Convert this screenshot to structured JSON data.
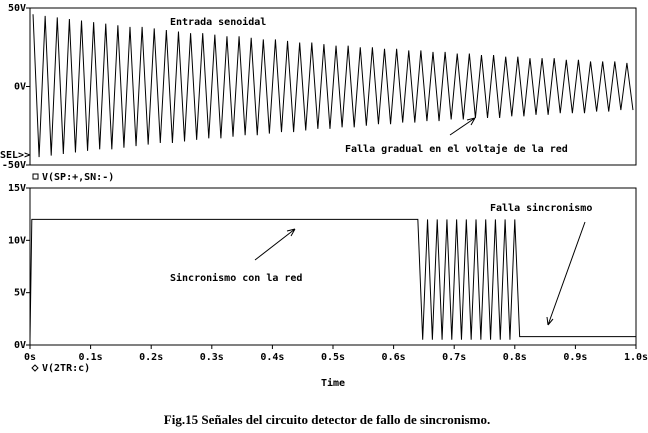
{
  "chart_data": [
    {
      "type": "line",
      "selector": "SEL>>",
      "annotations": [
        "Entrada senoidal",
        "Falla gradual en el voltaje de la red"
      ],
      "xlim": [
        0,
        1
      ],
      "ylim": [
        -50,
        50
      ],
      "yticks": [
        {
          "value": -50,
          "label": "-50V"
        },
        {
          "value": 0,
          "label": "0V"
        },
        {
          "value": 50,
          "label": "50V"
        }
      ],
      "x": [
        0.005,
        0.015,
        0.025,
        0.035,
        0.045,
        0.055,
        0.065,
        0.075,
        0.085,
        0.095,
        0.105,
        0.115,
        0.125,
        0.135,
        0.145,
        0.155,
        0.165,
        0.175,
        0.185,
        0.195,
        0.205,
        0.215,
        0.225,
        0.235,
        0.245,
        0.255,
        0.265,
        0.275,
        0.285,
        0.295,
        0.305,
        0.315,
        0.325,
        0.335,
        0.345,
        0.355,
        0.365,
        0.375,
        0.385,
        0.395,
        0.405,
        0.415,
        0.425,
        0.435,
        0.445,
        0.455,
        0.465,
        0.475,
        0.485,
        0.495,
        0.505,
        0.515,
        0.525,
        0.535,
        0.545,
        0.555,
        0.565,
        0.575,
        0.585,
        0.595,
        0.605,
        0.615,
        0.625,
        0.635,
        0.645,
        0.655,
        0.665,
        0.675,
        0.685,
        0.695,
        0.705,
        0.715,
        0.725,
        0.735,
        0.745,
        0.755,
        0.765,
        0.775,
        0.785,
        0.795,
        0.805,
        0.815,
        0.825,
        0.835,
        0.845,
        0.855,
        0.865,
        0.875,
        0.885,
        0.895,
        0.905,
        0.915,
        0.925,
        0.935,
        0.945,
        0.955,
        0.965,
        0.975,
        0.985,
        0.995
      ],
      "series": [
        {
          "name": "V(SP:+,SN:-)",
          "color": "#000000",
          "values": [
            46,
            -45,
            45,
            -44,
            44,
            -43,
            43,
            -42,
            42,
            -41,
            41,
            -40,
            40,
            -40,
            39,
            -39,
            38,
            -38,
            38,
            -37,
            37,
            -36,
            36,
            -36,
            35,
            -35,
            34,
            -34,
            34,
            -33,
            33,
            -33,
            32,
            -32,
            32,
            -31,
            31,
            -31,
            30,
            -30,
            30,
            -29,
            29,
            -29,
            28,
            -28,
            28,
            -27,
            27,
            -27,
            26,
            -26,
            26,
            -26,
            25,
            -25,
            25,
            -24,
            24,
            -24,
            24,
            -23,
            23,
            -23,
            23,
            -22,
            22,
            -22,
            22,
            -21,
            21,
            -21,
            21,
            -20,
            20,
            -20,
            20,
            -20,
            19,
            -19,
            19,
            -19,
            18,
            -18,
            18,
            -18,
            18,
            -17,
            17,
            -17,
            17,
            -17,
            16,
            -16,
            16,
            -16,
            16,
            -15,
            15,
            -15
          ]
        }
      ]
    },
    {
      "type": "line",
      "x_label": "Time",
      "annotations": [
        "Sincronismo con la red",
        "Falla sincronismo"
      ],
      "xlim": [
        0,
        1
      ],
      "ylim": [
        0,
        15
      ],
      "xticks": [
        {
          "value": 0,
          "label": "0s"
        },
        {
          "value": 0.1,
          "label": "0.1s"
        },
        {
          "value": 0.2,
          "label": "0.2s"
        },
        {
          "value": 0.3,
          "label": "0.3s"
        },
        {
          "value": 0.4,
          "label": "0.4s"
        },
        {
          "value": 0.5,
          "label": "0.5s"
        },
        {
          "value": 0.6,
          "label": "0.6s"
        },
        {
          "value": 0.7,
          "label": "0.7s"
        },
        {
          "value": 0.8,
          "label": "0.8s"
        },
        {
          "value": 0.9,
          "label": "0.9s"
        },
        {
          "value": 1,
          "label": "1.0s"
        }
      ],
      "yticks": [
        {
          "value": 0,
          "label": "0V"
        },
        {
          "value": 5,
          "label": "5V"
        },
        {
          "value": 10,
          "label": "10V"
        },
        {
          "value": 15,
          "label": "15V"
        }
      ],
      "x": [
        0,
        0.003,
        0.64,
        0.648,
        0.656,
        0.664,
        0.672,
        0.68,
        0.688,
        0.696,
        0.704,
        0.712,
        0.72,
        0.728,
        0.736,
        0.744,
        0.752,
        0.76,
        0.768,
        0.776,
        0.784,
        0.792,
        0.8,
        0.808,
        0.812,
        1
      ],
      "series": [
        {
          "name": "V(2TR:c)",
          "color": "#000000",
          "values": [
            0.5,
            12,
            12,
            0.5,
            12,
            0.5,
            12,
            0.5,
            12,
            0.5,
            12,
            0.5,
            12,
            0.5,
            12,
            0.5,
            12,
            0.5,
            12,
            0.5,
            12,
            0.5,
            12,
            0.8,
            0.8,
            0.8
          ]
        }
      ]
    }
  ],
  "caption": "Fig.15 Señales del circuito detector de fallo de sincronismo."
}
